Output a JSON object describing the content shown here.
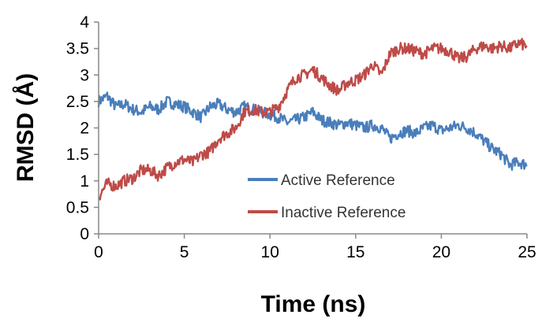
{
  "chart_data": {
    "type": "line",
    "title": "",
    "xlabel": "Time (ns)",
    "ylabel": "RMSD (Å)",
    "xlim": [
      0,
      25
    ],
    "ylim": [
      0,
      4
    ],
    "xticks": [
      "0",
      "5",
      "10",
      "15",
      "20",
      "25"
    ],
    "yticks": [
      "0",
      "0.5",
      "1",
      "1.5",
      "2",
      "2.5",
      "3",
      "3.5",
      "4"
    ],
    "grid": false,
    "legend_position": "center-right",
    "series": [
      {
        "name": "Active Reference",
        "color": "#4A7EBB",
        "x": [
          0,
          0.5,
          1,
          1.5,
          2,
          2.5,
          3,
          3.5,
          4,
          4.5,
          5,
          5.5,
          6,
          6.5,
          7,
          7.5,
          8,
          8.5,
          9,
          9.5,
          10,
          10.5,
          11,
          11.5,
          12,
          12.5,
          13,
          13.5,
          14,
          14.5,
          15,
          15.5,
          16,
          16.5,
          17,
          17.5,
          18,
          18.5,
          19,
          19.5,
          20,
          20.5,
          21,
          21.5,
          22,
          22.5,
          23,
          23.5,
          24,
          24.5,
          25
        ],
        "values": [
          2.5,
          2.6,
          2.4,
          2.45,
          2.35,
          2.3,
          2.4,
          2.35,
          2.5,
          2.45,
          2.4,
          2.3,
          2.2,
          2.4,
          2.45,
          2.35,
          2.3,
          2.4,
          2.35,
          2.3,
          2.25,
          2.2,
          2.1,
          2.15,
          2.2,
          2.3,
          2.15,
          2.1,
          2.05,
          2.1,
          2.05,
          2.0,
          2.05,
          2.0,
          1.8,
          1.9,
          1.95,
          1.9,
          2.0,
          2.05,
          1.95,
          2.0,
          2.05,
          2.0,
          1.9,
          1.75,
          1.6,
          1.5,
          1.3,
          1.35,
          1.3
        ]
      },
      {
        "name": "Inactive Reference",
        "color": "#BE4B48",
        "x": [
          0,
          0.5,
          1,
          1.5,
          2,
          2.5,
          3,
          3.5,
          4,
          4.5,
          5,
          5.5,
          6,
          6.5,
          7,
          7.5,
          8,
          8.5,
          9,
          9.5,
          10,
          10.5,
          11,
          11.5,
          12,
          12.5,
          13,
          13.5,
          14,
          14.5,
          15,
          15.5,
          16,
          16.5,
          17,
          17.5,
          18,
          18.5,
          19,
          19.5,
          20,
          20.5,
          21,
          21.5,
          22,
          22.5,
          23,
          23.5,
          24,
          24.5,
          25
        ],
        "values": [
          0.7,
          0.95,
          0.9,
          1.0,
          1.05,
          1.2,
          1.2,
          1.1,
          1.25,
          1.35,
          1.4,
          1.35,
          1.5,
          1.55,
          1.8,
          1.9,
          2.0,
          2.3,
          2.35,
          2.3,
          2.3,
          2.4,
          2.7,
          2.95,
          3.0,
          3.1,
          2.95,
          2.8,
          2.7,
          2.85,
          2.9,
          3.0,
          3.2,
          3.0,
          3.4,
          3.5,
          3.5,
          3.45,
          3.4,
          3.5,
          3.5,
          3.45,
          3.3,
          3.35,
          3.5,
          3.55,
          3.5,
          3.55,
          3.5,
          3.6,
          3.55
        ]
      }
    ]
  }
}
